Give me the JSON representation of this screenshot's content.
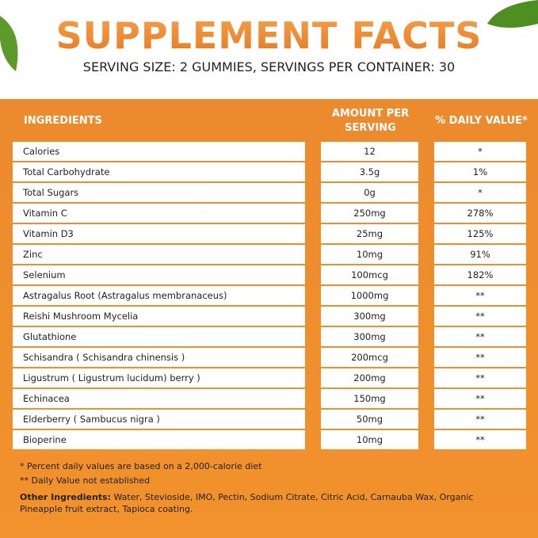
{
  "header": {
    "title": "SUPPLEMENT FACTS",
    "subtitle": "SERVING SIZE: 2 GUMMIES, SERVINGS PER CONTAINER: 30"
  },
  "table": {
    "columns": [
      "INGREDIENTS",
      "AMOUNT PER SERVING",
      "% DAILY VALUE*"
    ],
    "rows": [
      [
        "Calories",
        "12",
        "*"
      ],
      [
        "Total Carbohydrate",
        "3.5g",
        "1%"
      ],
      [
        "Total Sugars",
        "0g",
        "*"
      ],
      [
        "Vitamin C",
        "250mg",
        "278%"
      ],
      [
        "Vitamin D3",
        "25mg",
        "125%"
      ],
      [
        "Zinc",
        "10mg",
        "91%"
      ],
      [
        "Selenium",
        "100mcg",
        "182%"
      ],
      [
        "Astragalus Root  (Astragalus membranaceus)",
        "1000mg",
        "**"
      ],
      [
        "Reishi Mushroom Mycelia",
        "300mg",
        "**"
      ],
      [
        "Glutathione",
        "300mg",
        "**"
      ],
      [
        "Schisandra ( Schisandra chinensis )",
        "200mcg",
        "**"
      ],
      [
        "Ligustrum ( Ligustrum lucidum) berry )",
        "200mg",
        "**"
      ],
      [
        "Echinacea",
        "150mg",
        "**"
      ],
      [
        "Elderberry ( Sambucus nigra )",
        "50mg",
        "**"
      ],
      [
        "Bioperine",
        "10mg",
        "**"
      ]
    ]
  },
  "footnotes": [
    "* Percent daily values are based on a 2,000-calorie diet",
    "** Daily Value not established"
  ],
  "other_ingredients": {
    "label": "Other Ingredients:",
    "text": "Water, Stevioside, IMO, Pectin, Sodium Citrate, Citric Acid, Carnauba Wax, Organic Pineapple fruit extract, Tapioca coating."
  }
}
